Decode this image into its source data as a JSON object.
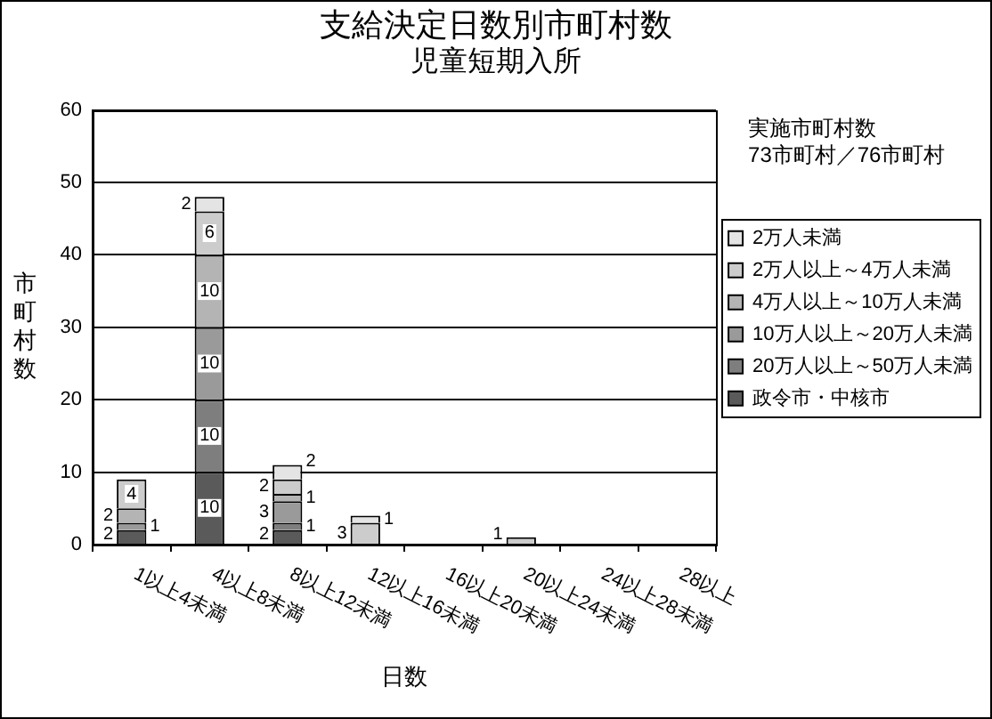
{
  "chart_data": {
    "type": "bar",
    "title": "支給決定日数別市町村数",
    "subtitle": "児童短期入所",
    "xlabel": "日数",
    "ylabel": "市町村数",
    "annotations": [
      "実施市町村数",
      "73市町村／76市町村"
    ],
    "categories": [
      "1以上4未満",
      "4以上8未満",
      "8以上12未満",
      "12以上16未満",
      "16以上20未満",
      "20以上24未満",
      "24以上28未満",
      "28以上"
    ],
    "series": [
      {
        "name": "政令市・中核市",
        "color": "#5a5a5a",
        "values": [
          2,
          10,
          2,
          null,
          null,
          null,
          null,
          null
        ]
      },
      {
        "name": "20万人以上～50万人未満",
        "color": "#7e7e7e",
        "values": [
          null,
          10,
          1,
          null,
          null,
          null,
          null,
          null
        ]
      },
      {
        "name": "10万人以上～20万人未満",
        "color": "#9a9a9a",
        "values": [
          1,
          10,
          3,
          null,
          null,
          null,
          null,
          null
        ]
      },
      {
        "name": "4万人以上～10万人未満",
        "color": "#b4b4b4",
        "values": [
          2,
          10,
          1,
          null,
          null,
          null,
          null,
          null
        ]
      },
      {
        "name": "2万人以上～4万人未満",
        "color": "#cccccc",
        "values": [
          4,
          6,
          2,
          3,
          null,
          1,
          null,
          null
        ]
      },
      {
        "name": "2万人未満",
        "color": "#e4e4e4",
        "values": [
          null,
          2,
          2,
          1,
          null,
          null,
          null,
          null
        ]
      }
    ],
    "stacked": true,
    "ylim": [
      0,
      60
    ],
    "yticks": [
      0,
      10,
      20,
      30,
      40,
      50,
      60
    ],
    "grid": "y",
    "legend": "right",
    "data_labels": true
  }
}
